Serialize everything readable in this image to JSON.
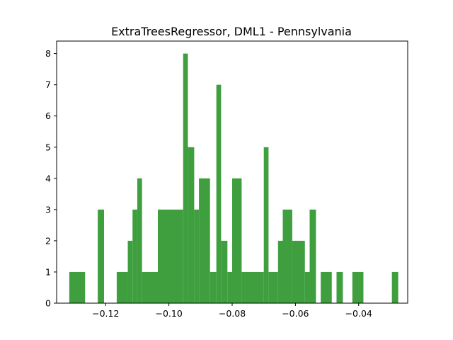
{
  "chart_data": {
    "type": "bar",
    "title": "ExtraTreesRegressor, DML1 - Pennsylvania",
    "xlabel": "",
    "ylabel": "",
    "bar_color": "#3f9f3f",
    "xlim": [
      -0.1355,
      -0.0245
    ],
    "ylim": [
      0,
      8.4
    ],
    "bin_width": 0.002,
    "bin_start": -0.1315,
    "counts": [
      1,
      1,
      1,
      0,
      0,
      0,
      0,
      0,
      0,
      0,
      0,
      0,
      0,
      0,
      0,
      0,
      0,
      0,
      0,
      0,
      0,
      0,
      0,
      0,
      0,
      0,
      0,
      0,
      0,
      0,
      0,
      0,
      0,
      0,
      0,
      0,
      0,
      0,
      0,
      0,
      0,
      0,
      0,
      0,
      0,
      0,
      0,
      0,
      0,
      0
    ],
    "bins": [
      {
        "x0": -0.1315,
        "x1": -0.1265,
        "count": 1
      },
      {
        "x0": -0.1225,
        "x1": -0.1205,
        "count": 3
      },
      {
        "x0": -0.1165,
        "x1": -0.113,
        "count": 1
      },
      {
        "x0": -0.113,
        "x1": -0.1115,
        "count": 2
      },
      {
        "x0": -0.1115,
        "x1": -0.11,
        "count": 3
      },
      {
        "x0": -0.11,
        "x1": -0.1085,
        "count": 4
      },
      {
        "x0": -0.1085,
        "x1": -0.1035,
        "count": 1
      },
      {
        "x0": -0.1035,
        "x1": -0.0955,
        "count": 3
      },
      {
        "x0": -0.0955,
        "x1": -0.094,
        "count": 8
      },
      {
        "x0": -0.094,
        "x1": -0.092,
        "count": 5
      },
      {
        "x0": -0.092,
        "x1": -0.0905,
        "count": 3
      },
      {
        "x0": -0.0905,
        "x1": -0.087,
        "count": 4
      },
      {
        "x0": -0.087,
        "x1": -0.085,
        "count": 1
      },
      {
        "x0": -0.085,
        "x1": -0.0835,
        "count": 7
      },
      {
        "x0": -0.0835,
        "x1": -0.0815,
        "count": 2
      },
      {
        "x0": -0.0815,
        "x1": -0.08,
        "count": 1
      },
      {
        "x0": -0.08,
        "x1": -0.077,
        "count": 4
      },
      {
        "x0": -0.077,
        "x1": -0.07,
        "count": 1
      },
      {
        "x0": -0.07,
        "x1": -0.0685,
        "count": 5
      },
      {
        "x0": -0.0685,
        "x1": -0.0655,
        "count": 1
      },
      {
        "x0": -0.0655,
        "x1": -0.064,
        "count": 2
      },
      {
        "x0": -0.064,
        "x1": -0.061,
        "count": 3
      },
      {
        "x0": -0.061,
        "x1": -0.057,
        "count": 2
      },
      {
        "x0": -0.057,
        "x1": -0.0555,
        "count": 1
      },
      {
        "x0": -0.0555,
        "x1": -0.0535,
        "count": 3
      },
      {
        "x0": -0.052,
        "x1": -0.0485,
        "count": 1
      },
      {
        "x0": -0.047,
        "x1": -0.045,
        "count": 1
      },
      {
        "x0": -0.042,
        "x1": -0.0385,
        "count": 1
      },
      {
        "x0": -0.0295,
        "x1": -0.0275,
        "count": 1
      }
    ],
    "xticks": [
      {
        "value": -0.12,
        "label": "−0.12"
      },
      {
        "value": -0.1,
        "label": "−0.10"
      },
      {
        "value": -0.08,
        "label": "−0.08"
      },
      {
        "value": -0.06,
        "label": "−0.06"
      },
      {
        "value": -0.04,
        "label": "−0.04"
      }
    ],
    "yticks": [
      {
        "value": 0,
        "label": "0"
      },
      {
        "value": 1,
        "label": "1"
      },
      {
        "value": 2,
        "label": "2"
      },
      {
        "value": 3,
        "label": "3"
      },
      {
        "value": 4,
        "label": "4"
      },
      {
        "value": 5,
        "label": "5"
      },
      {
        "value": 6,
        "label": "6"
      },
      {
        "value": 7,
        "label": "7"
      },
      {
        "value": 8,
        "label": "8"
      }
    ],
    "grid": false,
    "legend": "none"
  }
}
